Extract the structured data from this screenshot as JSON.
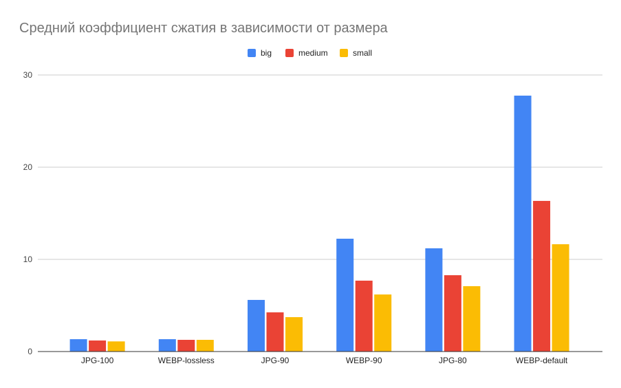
{
  "chart_data": {
    "type": "bar",
    "title": "Средний коэффициент сжатия в зависимости от размера",
    "xlabel": "",
    "ylabel": "",
    "ylim": [
      0,
      30
    ],
    "yticks": [
      0,
      10,
      20,
      30
    ],
    "grid": true,
    "legend_position": "top-center",
    "categories": [
      "JPG-100",
      "WEBP-lossless",
      "JPG-90",
      "WEBP-90",
      "JPG-80",
      "WEBP-default"
    ],
    "series": [
      {
        "name": "big",
        "color": "#4285f4",
        "values": [
          1.34,
          1.34,
          5.6,
          12.24,
          11.2,
          27.76
        ]
      },
      {
        "name": "medium",
        "color": "#ea4335",
        "values": [
          1.2,
          1.27,
          4.25,
          7.69,
          8.28,
          16.34
        ]
      },
      {
        "name": "small",
        "color": "#fbbc04",
        "values": [
          1.1,
          1.27,
          3.73,
          6.19,
          7.09,
          11.64
        ]
      }
    ]
  }
}
